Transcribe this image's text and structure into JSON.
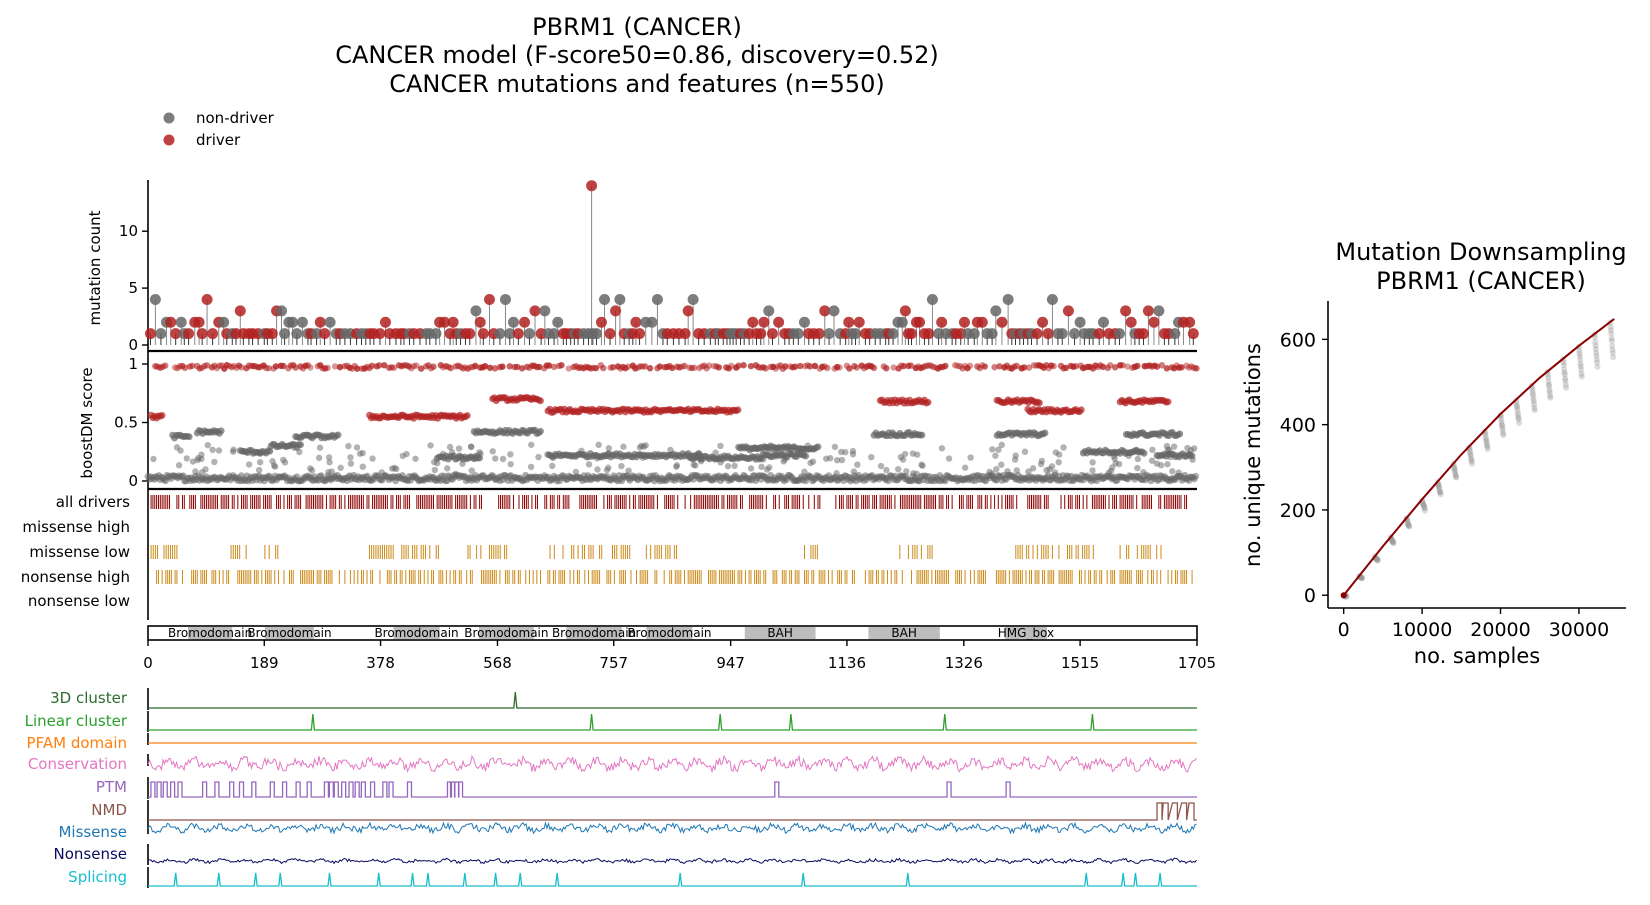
{
  "titles": {
    "line1": "PBRM1 (CANCER)",
    "line2": "CANCER model (F-score50=0.86, discovery=0.52)",
    "line3": "CANCER mutations and features (n=550)"
  },
  "legend": {
    "nondriver": "non-driver",
    "driver": "driver"
  },
  "colors": {
    "nondriver": "#666666",
    "driver": "#b22222",
    "drivers_track": "#8b0000",
    "orange_track": "#cc8a18",
    "domain_fill": "#bdbdbd",
    "cluster3d": "#2e6b2e",
    "linear": "#2ca02c",
    "pfam": "#ff7f0e",
    "conservation": "#e377c2",
    "ptm": "#9467bd",
    "nmd": "#8c564b",
    "missense": "#1f77b4",
    "nonsense": "#0b0b5e",
    "splicing": "#17becf",
    "curve": "#8b0000"
  },
  "chart_data": [
    {
      "type": "scatter",
      "title": "PBRM1 (CANCER)",
      "ylabel_top": "mutation count",
      "ylabel_mid": "boostDM score",
      "xlim": [
        0,
        1705
      ],
      "xticks": [
        "0",
        "189",
        "378",
        "568",
        "757",
        "947",
        "1136",
        "1326",
        "1515",
        "1705"
      ],
      "count_yticks": [
        "0",
        "5",
        "10"
      ],
      "score_yticks": [
        "0",
        "0.5",
        "1"
      ],
      "count_ylim": [
        0,
        14.5
      ],
      "score_ylim": [
        0,
        1
      ],
      "peak_mutation": {
        "position": 721,
        "count": 14,
        "class": "driver"
      },
      "tracks": [
        "all drivers",
        "missense high",
        "missense low",
        "nonsense high",
        "nonsense low"
      ],
      "domains": [
        {
          "name": "Bromodomain",
          "start": 65,
          "end": 137
        },
        {
          "name": "Bromodomain",
          "start": 190,
          "end": 270
        },
        {
          "name": "Bromodomain",
          "start": 399,
          "end": 474
        },
        {
          "name": "Bromodomain",
          "start": 538,
          "end": 627
        },
        {
          "name": "Bromodomain",
          "start": 680,
          "end": 770
        },
        {
          "name": "Bromodomain",
          "start": 810,
          "end": 885
        },
        {
          "name": "BAH",
          "start": 970,
          "end": 1085
        },
        {
          "name": "BAH",
          "start": 1171,
          "end": 1287
        },
        {
          "name": "HMG_box",
          "start": 1393,
          "end": 1461
        }
      ],
      "features": [
        "3D cluster",
        "Linear cluster",
        "PFAM domain",
        "Conservation",
        "PTM",
        "NMD",
        "Missense",
        "Nonsense",
        "Splicing"
      ],
      "feature_events": {
        "cluster3d": [
          597
        ],
        "linear": [
          268,
          721,
          930,
          1045,
          1295,
          1535
        ],
        "ptm": [
          8,
          18,
          28,
          40,
          52,
          92,
          112,
          136,
          152,
          172,
          202,
          222,
          244,
          262,
          290,
          298,
          306,
          318,
          330,
          340,
          350,
          365,
          385,
          395,
          425,
          490,
          495,
          502,
          508,
          1022,
          1302,
          1398
        ],
        "splicing": [
          45,
          115,
          175,
          215,
          295,
          375,
          430,
          455,
          515,
          565,
          605,
          665,
          865,
          1065,
          1235,
          1525,
          1585,
          1605,
          1645
        ]
      }
    },
    {
      "type": "line",
      "title": "Mutation Downsampling\nPBRM1 (CANCER)",
      "xlabel": "no. samples",
      "ylabel": "no. unique mutations",
      "xlim": [
        -2000,
        36000
      ],
      "ylim": [
        -30,
        690
      ],
      "xticks": [
        0,
        10000,
        20000,
        30000
      ],
      "yticks": [
        0,
        200,
        400,
        600
      ],
      "fit": {
        "x": [
          0,
          5000,
          10000,
          15000,
          20000,
          25000,
          30000,
          34500
        ],
        "y": [
          0,
          115,
          225,
          330,
          425,
          510,
          585,
          648
        ]
      }
    }
  ]
}
